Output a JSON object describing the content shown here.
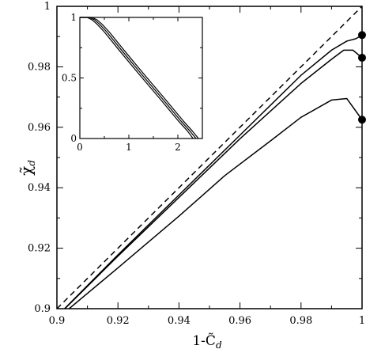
{
  "chart_data": [
    {
      "type": "line",
      "xlabel": "1-C̃",
      "xlabel_sub": "d",
      "ylabel": "χ̃",
      "ylabel_sub": "d",
      "xlim": [
        0.9,
        1.0
      ],
      "ylim": [
        0.9,
        1.0
      ],
      "x_ticks": [
        "0.9",
        "0.92",
        "0.94",
        "0.96",
        "0.98",
        "1"
      ],
      "y_ticks": [
        "0.9",
        "0.92",
        "0.94",
        "0.96",
        "0.98",
        "1"
      ],
      "x_tick_values": [
        0.9,
        0.92,
        0.94,
        0.96,
        0.98,
        1.0
      ],
      "y_tick_values": [
        0.9,
        0.92,
        0.94,
        0.96,
        0.98,
        1.0
      ],
      "grid": false,
      "series": [
        {
          "style": "dashed",
          "x": [
            0.9,
            1.0
          ],
          "y": [
            0.9,
            1.0
          ]
        },
        {
          "style": "solid",
          "x": [
            0.9025,
            0.92,
            0.94,
            0.96,
            0.98,
            0.99,
            0.995,
            0.998,
            1.0
          ],
          "y": [
            0.9,
            0.9178,
            0.9376,
            0.9574,
            0.9772,
            0.9855,
            0.9885,
            0.9893,
            0.9905
          ]
        },
        {
          "style": "solid",
          "x": [
            0.9026,
            0.92,
            0.94,
            0.96,
            0.98,
            0.99,
            0.994,
            0.997,
            1.0
          ],
          "y": [
            0.9,
            0.9174,
            0.9368,
            0.9562,
            0.9745,
            0.9825,
            0.9855,
            0.9855,
            0.983
          ]
        },
        {
          "style": "solid",
          "x": [
            0.904,
            0.92,
            0.94,
            0.955,
            0.97,
            0.98,
            0.99,
            0.995,
            1.0
          ],
          "y": [
            0.9,
            0.9135,
            0.9306,
            0.944,
            0.9555,
            0.9633,
            0.969,
            0.9695,
            0.9625
          ]
        }
      ],
      "endpoints": [
        {
          "x": 1.0,
          "y": 0.9905
        },
        {
          "x": 1.0,
          "y": 0.983
        },
        {
          "x": 1.0,
          "y": 0.9625
        }
      ]
    },
    {
      "type": "line",
      "role": "inset",
      "xlim": [
        0,
        2.5
      ],
      "ylim": [
        0,
        1.0
      ],
      "x_ticks": [
        "0",
        "1",
        "2"
      ],
      "y_ticks": [
        "0",
        "0.5",
        "1"
      ],
      "x_tick_values": [
        0,
        1,
        2
      ],
      "y_tick_values": [
        0,
        0.5,
        1
      ],
      "grid": false,
      "series": [
        {
          "style": "solid",
          "x": [
            0,
            0.15,
            0.25,
            0.35,
            0.5,
            0.8,
            1.2,
            1.6,
            2.0,
            2.2,
            2.31
          ],
          "y": [
            1.0,
            1.0,
            0.98,
            0.945,
            0.88,
            0.73,
            0.535,
            0.345,
            0.15,
            0.06,
            0.0
          ]
        },
        {
          "style": "solid",
          "x": [
            0,
            0.2,
            0.3,
            0.4,
            0.55,
            0.85,
            1.25,
            1.65,
            2.05,
            2.25,
            2.37
          ],
          "y": [
            1.0,
            1.0,
            0.98,
            0.945,
            0.88,
            0.73,
            0.535,
            0.345,
            0.15,
            0.06,
            0.0
          ]
        },
        {
          "style": "solid",
          "x": [
            0,
            0.25,
            0.35,
            0.45,
            0.6,
            0.9,
            1.3,
            1.7,
            2.1,
            2.3,
            2.42
          ],
          "y": [
            1.0,
            1.0,
            0.98,
            0.945,
            0.88,
            0.73,
            0.535,
            0.345,
            0.15,
            0.06,
            0.0
          ]
        }
      ]
    }
  ]
}
